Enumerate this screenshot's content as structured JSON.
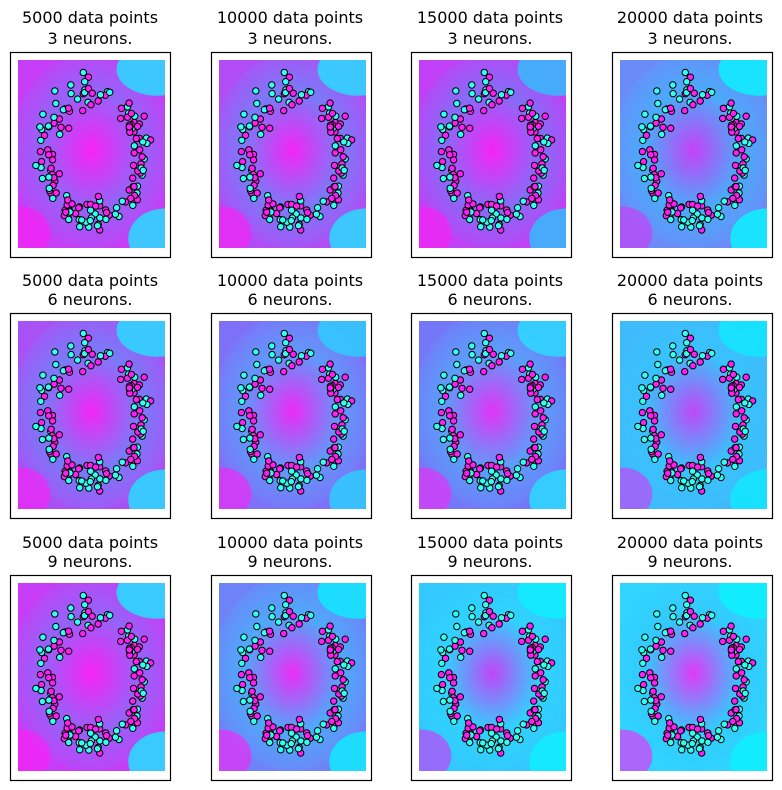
{
  "chart_data": [
    {
      "type": "scatter",
      "title": [
        "5000 data points",
        "3 neurons."
      ],
      "bg": {
        "base": "#c73df7",
        "low": "#ff1ef5",
        "high": "#2fd5ff",
        "mix": "#8a6bf8"
      }
    },
    {
      "type": "scatter",
      "title": [
        "10000 data points",
        "3 neurons."
      ],
      "bg": {
        "base": "#b24cf6",
        "low": "#ff1ef5",
        "high": "#2fd5ff",
        "mix": "#6f83f8"
      }
    },
    {
      "type": "scatter",
      "title": [
        "15000 data points",
        "3 neurons."
      ],
      "bg": {
        "base": "#c13ff6",
        "low": "#ff1ef5",
        "high": "#3ab6fb",
        "mix": "#7a75f8"
      }
    },
    {
      "type": "scatter",
      "title": [
        "20000 data points",
        "3 neurons."
      ],
      "bg": {
        "base": "#6b8bf8",
        "low": "#d435f6",
        "high": "#12ecff",
        "mix": "#44b1fb"
      }
    },
    {
      "type": "scatter",
      "title": [
        "5000 data points",
        "6 neurons."
      ],
      "bg": {
        "base": "#a852f6",
        "low": "#ff1ef5",
        "high": "#2fd5ff",
        "mix": "#6f83f8"
      }
    },
    {
      "type": "scatter",
      "title": [
        "10000 data points",
        "6 neurons."
      ],
      "bg": {
        "base": "#7f70f8",
        "low": "#ff1ef5",
        "high": "#33c8fe",
        "mix": "#5aa0fa"
      }
    },
    {
      "type": "scatter",
      "title": [
        "15000 data points",
        "6 neurons."
      ],
      "bg": {
        "base": "#7478f8",
        "low": "#f428f5",
        "high": "#2fd5ff",
        "mix": "#55a6fa"
      }
    },
    {
      "type": "scatter",
      "title": [
        "20000 data points",
        "6 neurons."
      ],
      "bg": {
        "base": "#3fbbfc",
        "low": "#d435f6",
        "high": "#14e6ff",
        "mix": "#37c4fd"
      }
    },
    {
      "type": "scatter",
      "title": [
        "5000 data points",
        "9 neurons."
      ],
      "bg": {
        "base": "#c73df7",
        "low": "#ff1ef5",
        "high": "#2ad9ff",
        "mix": "#8a6bf8"
      }
    },
    {
      "type": "scatter",
      "title": [
        "10000 data points",
        "9 neurons."
      ],
      "bg": {
        "base": "#6f83f8",
        "low": "#ff1ef5",
        "high": "#14e6ff",
        "mix": "#48b0fb"
      }
    },
    {
      "type": "scatter",
      "title": [
        "15000 data points",
        "9 neurons."
      ],
      "bg": {
        "base": "#33c8fe",
        "low": "#d82ff6",
        "high": "#12ecff",
        "mix": "#2ed5ff"
      }
    },
    {
      "type": "scatter",
      "title": [
        "20000 data points",
        "9 neurons."
      ],
      "bg": {
        "base": "#2fd5ff",
        "low": "#ff1ef5",
        "high": "#10eeff",
        "mix": "#33c8fe"
      }
    }
  ],
  "colors": {
    "class_inner": "#ff1ef5",
    "class_outer": "#31fff2",
    "marker_edge": "#000000",
    "axes_frame": "#000000"
  }
}
